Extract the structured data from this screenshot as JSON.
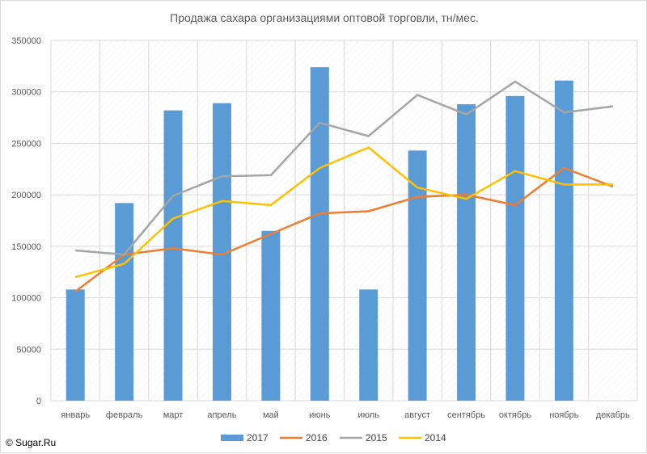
{
  "colors": {
    "series_2017": "#5b9bd5",
    "series_2016": "#ed7d31",
    "series_2015": "#a5a5a5",
    "series_2014": "#ffc000",
    "grid": "#d9d9d9",
    "hatch": "#e7e7e7"
  },
  "copyright": "© Sugar.Ru",
  "chart_data": {
    "type": "bar",
    "title": "Продажа сахара организациями оптовой торговли, тн/мес.",
    "xlabel": "",
    "ylabel": "",
    "ylim": [
      0,
      350000
    ],
    "yticks": [
      "0",
      "50000",
      "100000",
      "150000",
      "200000",
      "250000",
      "300000",
      "350000"
    ],
    "grid": true,
    "legend_position": "bottom",
    "categories": [
      "январь",
      "февраль",
      "март",
      "апрель",
      "май",
      "июнь",
      "июль",
      "август",
      "сентябрь",
      "октябрь",
      "ноябрь",
      "декабрь"
    ],
    "series": [
      {
        "name": "2017",
        "type": "bar",
        "values": [
          108000,
          192000,
          282000,
          289000,
          165000,
          324000,
          108000,
          243000,
          288000,
          296000,
          311000,
          null
        ]
      },
      {
        "name": "2016",
        "type": "line",
        "values": [
          106000,
          142000,
          148000,
          142000,
          162000,
          182000,
          184000,
          198000,
          200000,
          190000,
          226000,
          208000
        ]
      },
      {
        "name": "2015",
        "type": "line",
        "values": [
          146000,
          142000,
          199000,
          218000,
          219000,
          270000,
          257000,
          297000,
          278000,
          310000,
          280000,
          286000
        ]
      },
      {
        "name": "2014",
        "type": "line",
        "values": [
          120000,
          133000,
          177000,
          194000,
          190000,
          226000,
          246000,
          207000,
          196000,
          223000,
          210000,
          210000
        ]
      }
    ]
  }
}
